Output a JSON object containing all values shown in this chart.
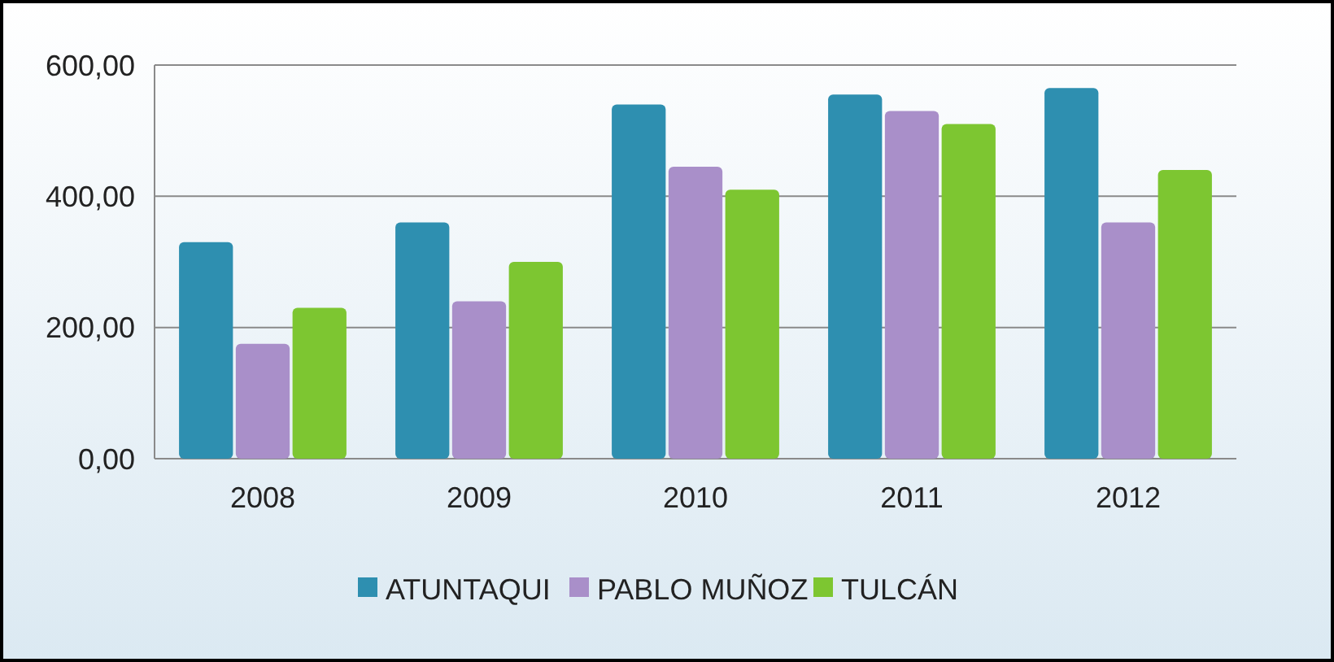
{
  "chart_data": {
    "type": "bar",
    "categories": [
      "2008",
      "2009",
      "2010",
      "2011",
      "2012"
    ],
    "series": [
      {
        "name": "ATUNTAQUI",
        "color": "#2e8fb0",
        "values": [
          330,
          360,
          540,
          555,
          565
        ]
      },
      {
        "name": "PABLO MUÑOZ",
        "color": "#a98fc9",
        "values": [
          175,
          240,
          445,
          530,
          360
        ]
      },
      {
        "name": "TULCÁN",
        "color": "#7dc631",
        "values": [
          230,
          300,
          410,
          510,
          440
        ]
      }
    ],
    "ylim": [
      0,
      600
    ],
    "yticks": [
      {
        "value": 0,
        "label": "0,00"
      },
      {
        "value": 200,
        "label": "200,00"
      },
      {
        "value": 400,
        "label": "400,00"
      },
      {
        "value": 600,
        "label": "600,00"
      }
    ],
    "grid": "y",
    "legend": "bottom"
  }
}
